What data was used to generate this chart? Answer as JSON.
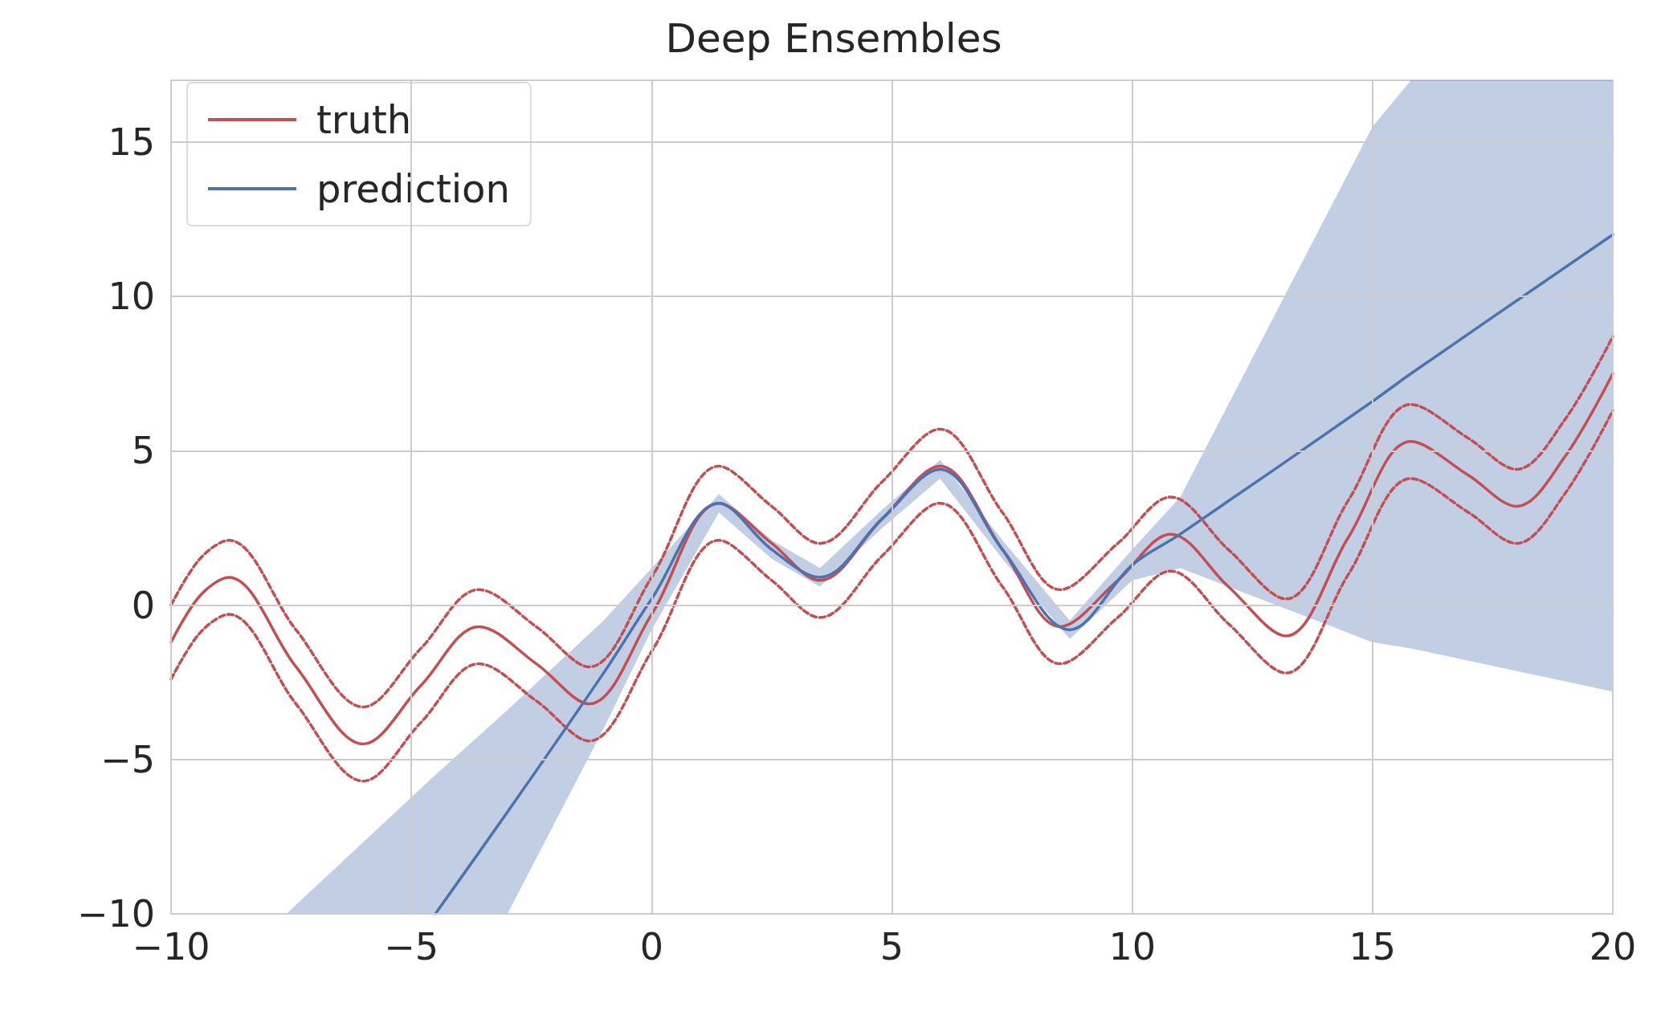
{
  "chart_data": {
    "type": "line",
    "title": "Deep Ensembles",
    "x": [
      -10,
      -9.4,
      -8.8,
      -7.4,
      -6,
      -4.8,
      -3.6,
      -2.4,
      -1.3,
      0,
      1.4,
      2.5,
      3.5,
      4.8,
      6,
      7.3,
      8.5,
      9.7,
      10.8,
      12,
      13.2,
      14.5,
      15.8,
      17,
      18,
      19,
      20
    ],
    "series": [
      {
        "name": "truth",
        "color": "#c44e52",
        "values": [
          -1.2,
          0.3,
          0.9,
          -2.0,
          -4.5,
          -2.6,
          -0.7,
          -1.9,
          -3.2,
          -0.3,
          3.3,
          2.0,
          0.8,
          2.8,
          4.5,
          1.8,
          -0.7,
          0.8,
          2.3,
          0.6,
          -1.0,
          2.2,
          5.3,
          4.2,
          3.2,
          4.8,
          7.5
        ]
      },
      {
        "color": "#c44e52",
        "line_style": "dashed",
        "values": [
          0.0,
          1.5,
          2.1,
          -0.8,
          -3.3,
          -1.4,
          0.5,
          -0.7,
          -2.0,
          0.9,
          4.5,
          3.2,
          2.0,
          4.0,
          5.7,
          3.0,
          0.5,
          2.0,
          3.5,
          1.8,
          0.2,
          3.4,
          6.5,
          5.4,
          4.4,
          6.0,
          8.7
        ]
      },
      {
        "color": "#c44e52",
        "line_style": "dashed",
        "values": [
          -2.4,
          -0.9,
          -0.3,
          -3.2,
          -5.7,
          -3.8,
          -1.9,
          -3.1,
          -4.4,
          -1.5,
          2.1,
          0.8,
          -0.4,
          1.6,
          3.3,
          0.6,
          -1.9,
          -0.4,
          1.1,
          -0.6,
          -2.2,
          1.0,
          4.1,
          3.0,
          2.0,
          3.6,
          6.3
        ]
      },
      {
        "name": "prediction",
        "color": "#4c72b0",
        "x": [
          -7.6,
          -4.5,
          -3,
          -1,
          0,
          1.4,
          2.5,
          3.5,
          4.8,
          6,
          7.3,
          8.7,
          10,
          11,
          15,
          15.8,
          20
        ],
        "values": [
          null,
          -10,
          -6.7,
          -2.2,
          0.2,
          3.3,
          1.8,
          0.9,
          2.8,
          4.4,
          1.8,
          -0.8,
          1.3,
          2.3,
          6.6,
          7.5,
          12.0
        ],
        "upper": [
          -10,
          -5.5,
          -3.4,
          -0.5,
          1.2,
          3.6,
          2.1,
          1.2,
          3.1,
          4.7,
          2.1,
          -0.5,
          1.8,
          3.5,
          15.5,
          17,
          17
        ],
        "lower": [
          -10,
          -10,
          -10,
          -4.0,
          -0.8,
          3.0,
          1.5,
          0.6,
          2.5,
          4.1,
          1.5,
          -1.1,
          0.8,
          1.2,
          -1.2,
          -1.4,
          -2.8
        ]
      }
    ],
    "xlim": [
      -10,
      20
    ],
    "xticks": [
      {
        "value": -10,
        "label": "−10"
      },
      {
        "value": -5,
        "label": "−5"
      },
      0,
      5,
      10,
      15,
      20
    ],
    "ylim": [
      -10,
      17
    ],
    "yticks": [
      {
        "value": -10,
        "label": "−10"
      },
      {
        "value": -5,
        "label": "−5"
      },
      0,
      5,
      10,
      15
    ],
    "grid": true,
    "legend": "top left",
    "line_style": "solid",
    "marker": "none"
  }
}
